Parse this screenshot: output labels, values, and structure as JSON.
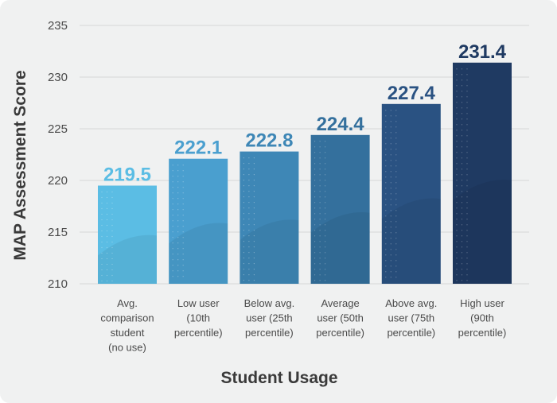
{
  "chart_data": {
    "type": "bar",
    "title": "",
    "xlabel": "Student Usage",
    "ylabel": "MAP Assessment Score",
    "ylim": [
      210,
      235
    ],
    "yticks": [
      210,
      215,
      220,
      225,
      230,
      235
    ],
    "grid": true,
    "categories": [
      [
        "Avg.",
        "comparison",
        "student",
        "(no use)"
      ],
      [
        "Low user",
        "(10th",
        "percentile)"
      ],
      [
        "Below avg.",
        "user (25th",
        "percentile)"
      ],
      [
        "Average",
        "user (50th",
        "percentile)"
      ],
      [
        "Above avg.",
        "user (75th",
        "percentile)"
      ],
      [
        "High user",
        "(90th",
        "percentile)"
      ]
    ],
    "values": [
      219.5,
      222.1,
      222.8,
      224.4,
      227.4,
      231.4
    ],
    "value_labels": [
      "219.5",
      "222.1",
      "222.8",
      "224.4",
      "227.4",
      "231.4"
    ],
    "colors": [
      "#5bbde4",
      "#4a9fcf",
      "#3e87b6",
      "#34709d",
      "#2a5282",
      "#1f3a62"
    ]
  }
}
